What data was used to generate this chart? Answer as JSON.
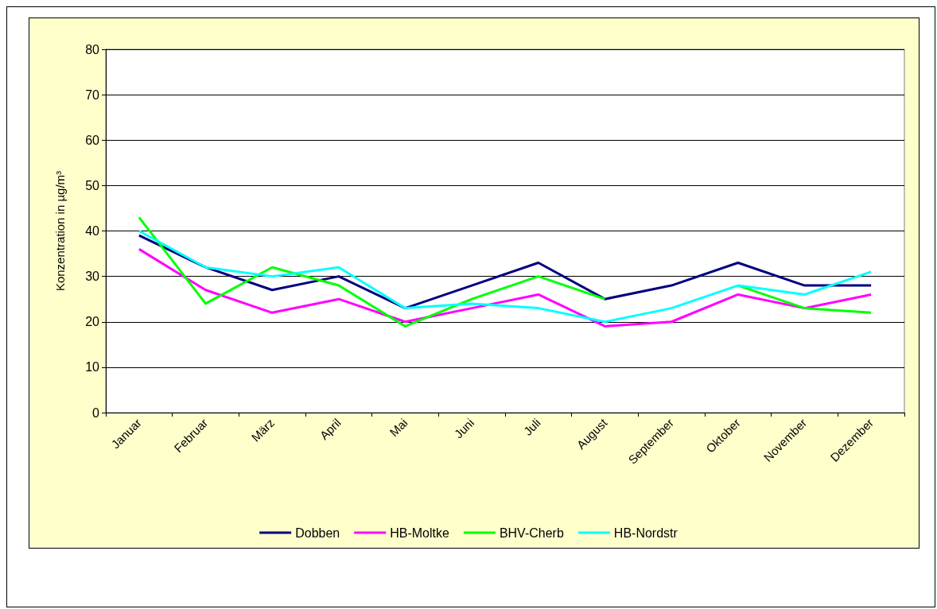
{
  "chart_data": {
    "type": "line",
    "ylabel": "Konzentration in µg/m³",
    "categories": [
      "Januar",
      "Februar",
      "März",
      "April",
      "Mai",
      "Juni",
      "Juli",
      "August",
      "September",
      "Oktober",
      "November",
      "Dezember"
    ],
    "series": [
      {
        "name": "Dobben",
        "color": "#000080",
        "values": [
          39,
          32,
          27,
          30,
          23,
          28,
          33,
          25,
          28,
          33,
          28,
          28
        ]
      },
      {
        "name": "HB-Moltke",
        "color": "#ff00ff",
        "values": [
          36,
          27,
          22,
          25,
          20,
          23,
          26,
          19,
          20,
          26,
          23,
          26
        ]
      },
      {
        "name": "BHV-Cherb",
        "color": "#00ff00",
        "values": [
          43,
          24,
          32,
          28,
          19,
          25,
          30,
          25,
          null,
          28,
          23,
          22
        ]
      },
      {
        "name": "HB-Nordstr",
        "color": "#00ffff",
        "values": [
          40,
          32,
          30,
          32,
          23,
          24,
          23,
          20,
          23,
          28,
          26,
          31
        ]
      }
    ],
    "ylim": [
      0,
      80
    ],
    "yticks": [
      0,
      10,
      20,
      30,
      40,
      50,
      60,
      70,
      80
    ],
    "grid": "y",
    "legend": "bottom",
    "marker": "none",
    "line_style": "solid"
  }
}
